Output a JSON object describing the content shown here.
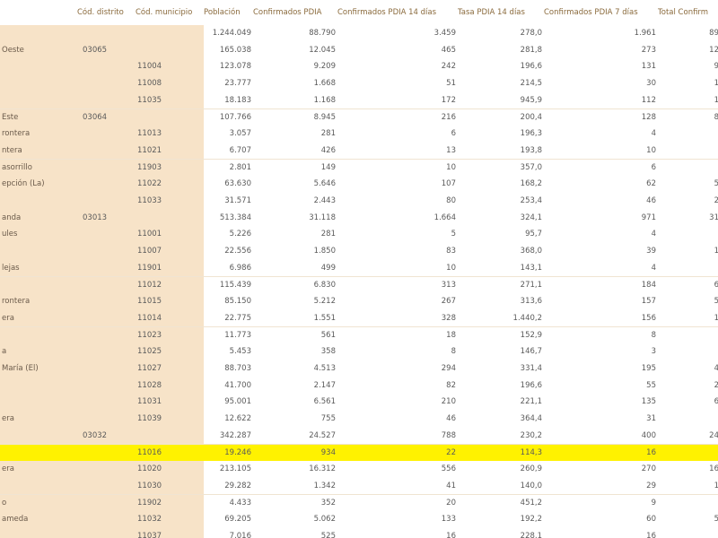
{
  "headers": [
    "",
    "Cód. distrito",
    "Cód. municipio",
    "Población",
    "Confirmados PDIA",
    "Confirmados PDIA 14 días",
    "Tasa PDIA 14 días",
    "Confirmados PDIA 7 días",
    "Total Confirm"
  ],
  "rows": [
    {
      "name": "",
      "distrito": "",
      "municipio": "",
      "poblacion": "1.244.049",
      "confirmados": "88.790",
      "c14": "3.459",
      "tasa14": "278,0",
      "c7": "1.961",
      "total": "89"
    },
    {
      "name": "Oeste",
      "distrito": "03065",
      "municipio": "",
      "poblacion": "165.038",
      "confirmados": "12.045",
      "c14": "465",
      "tasa14": "281,8",
      "c7": "273",
      "total": "12"
    },
    {
      "name": "",
      "distrito": "",
      "municipio": "11004",
      "poblacion": "123.078",
      "confirmados": "9.209",
      "c14": "242",
      "tasa14": "196,6",
      "c7": "131",
      "total": "9"
    },
    {
      "name": "",
      "distrito": "",
      "municipio": "11008",
      "poblacion": "23.777",
      "confirmados": "1.668",
      "c14": "51",
      "tasa14": "214,5",
      "c7": "30",
      "total": "1"
    },
    {
      "name": "",
      "distrito": "",
      "municipio": "11035",
      "poblacion": "18.183",
      "confirmados": "1.168",
      "c14": "172",
      "tasa14": "945,9",
      "c7": "112",
      "total": "1"
    },
    {
      "name": "Este",
      "distrito": "03064",
      "municipio": "",
      "poblacion": "107.766",
      "confirmados": "8.945",
      "c14": "216",
      "tasa14": "200,4",
      "c7": "128",
      "total": "8"
    },
    {
      "name": "rontera",
      "distrito": "",
      "municipio": "11013",
      "poblacion": "3.057",
      "confirmados": "281",
      "c14": "6",
      "tasa14": "196,3",
      "c7": "4",
      "total": ""
    },
    {
      "name": "ntera",
      "distrito": "",
      "municipio": "11021",
      "poblacion": "6.707",
      "confirmados": "426",
      "c14": "13",
      "tasa14": "193,8",
      "c7": "10",
      "total": ""
    },
    {
      "name": "asorrillo",
      "distrito": "",
      "municipio": "11903",
      "poblacion": "2.801",
      "confirmados": "149",
      "c14": "10",
      "tasa14": "357,0",
      "c7": "6",
      "total": ""
    },
    {
      "name": "epción (La)",
      "distrito": "",
      "municipio": "11022",
      "poblacion": "63.630",
      "confirmados": "5.646",
      "c14": "107",
      "tasa14": "168,2",
      "c7": "62",
      "total": "5"
    },
    {
      "name": "",
      "distrito": "",
      "municipio": "11033",
      "poblacion": "31.571",
      "confirmados": "2.443",
      "c14": "80",
      "tasa14": "253,4",
      "c7": "46",
      "total": "2"
    },
    {
      "name": "anda",
      "distrito": "03013",
      "municipio": "",
      "poblacion": "513.384",
      "confirmados": "31.118",
      "c14": "1.664",
      "tasa14": "324,1",
      "c7": "971",
      "total": "31"
    },
    {
      "name": "ules",
      "distrito": "",
      "municipio": "11001",
      "poblacion": "5.226",
      "confirmados": "281",
      "c14": "5",
      "tasa14": "95,7",
      "c7": "4",
      "total": ""
    },
    {
      "name": "",
      "distrito": "",
      "municipio": "11007",
      "poblacion": "22.556",
      "confirmados": "1.850",
      "c14": "83",
      "tasa14": "368,0",
      "c7": "39",
      "total": "1"
    },
    {
      "name": "lejas",
      "distrito": "",
      "municipio": "11901",
      "poblacion": "6.986",
      "confirmados": "499",
      "c14": "10",
      "tasa14": "143,1",
      "c7": "4",
      "total": ""
    },
    {
      "name": "",
      "distrito": "",
      "municipio": "11012",
      "poblacion": "115.439",
      "confirmados": "6.830",
      "c14": "313",
      "tasa14": "271,1",
      "c7": "184",
      "total": "6"
    },
    {
      "name": "rontera",
      "distrito": "",
      "municipio": "11015",
      "poblacion": "85.150",
      "confirmados": "5.212",
      "c14": "267",
      "tasa14": "313,6",
      "c7": "157",
      "total": "5"
    },
    {
      "name": "era",
      "distrito": "",
      "municipio": "11014",
      "poblacion": "22.775",
      "confirmados": "1.551",
      "c14": "328",
      "tasa14": "1.440,2",
      "c7": "156",
      "total": "1"
    },
    {
      "name": "",
      "distrito": "",
      "municipio": "11023",
      "poblacion": "11.773",
      "confirmados": "561",
      "c14": "18",
      "tasa14": "152,9",
      "c7": "8",
      "total": ""
    },
    {
      "name": "a",
      "distrito": "",
      "municipio": "11025",
      "poblacion": "5.453",
      "confirmados": "358",
      "c14": "8",
      "tasa14": "146,7",
      "c7": "3",
      "total": ""
    },
    {
      "name": "María (El)",
      "distrito": "",
      "municipio": "11027",
      "poblacion": "88.703",
      "confirmados": "4.513",
      "c14": "294",
      "tasa14": "331,4",
      "c7": "195",
      "total": "4"
    },
    {
      "name": "",
      "distrito": "",
      "municipio": "11028",
      "poblacion": "41.700",
      "confirmados": "2.147",
      "c14": "82",
      "tasa14": "196,6",
      "c7": "55",
      "total": "2"
    },
    {
      "name": "",
      "distrito": "",
      "municipio": "11031",
      "poblacion": "95.001",
      "confirmados": "6.561",
      "c14": "210",
      "tasa14": "221,1",
      "c7": "135",
      "total": "6"
    },
    {
      "name": "era",
      "distrito": "",
      "municipio": "11039",
      "poblacion": "12.622",
      "confirmados": "755",
      "c14": "46",
      "tasa14": "364,4",
      "c7": "31",
      "total": ""
    },
    {
      "name": "",
      "distrito": "03032",
      "municipio": "",
      "poblacion": "342.287",
      "confirmados": "24.527",
      "c14": "788",
      "tasa14": "230,2",
      "c7": "400",
      "total": "24"
    },
    {
      "name": "",
      "distrito": "",
      "municipio": "11016",
      "poblacion": "19.246",
      "confirmados": "934",
      "c14": "22",
      "tasa14": "114,3",
      "c7": "16",
      "total": "",
      "highlight": true
    },
    {
      "name": "era",
      "distrito": "",
      "municipio": "11020",
      "poblacion": "213.105",
      "confirmados": "16.312",
      "c14": "556",
      "tasa14": "260,9",
      "c7": "270",
      "total": "16"
    },
    {
      "name": "",
      "distrito": "",
      "municipio": "11030",
      "poblacion": "29.282",
      "confirmados": "1.342",
      "c14": "41",
      "tasa14": "140,0",
      "c7": "29",
      "total": "1"
    },
    {
      "name": "o",
      "distrito": "",
      "municipio": "11902",
      "poblacion": "4.433",
      "confirmados": "352",
      "c14": "20",
      "tasa14": "451,2",
      "c7": "9",
      "total": ""
    },
    {
      "name": "ameda",
      "distrito": "",
      "municipio": "11032",
      "poblacion": "69.205",
      "confirmados": "5.062",
      "c14": "133",
      "tasa14": "192,2",
      "c7": "60",
      "total": "5"
    },
    {
      "name": "",
      "distrito": "",
      "municipio": "11037",
      "poblacion": "7.016",
      "confirmados": "525",
      "c14": "16",
      "tasa14": "228,1",
      "c7": "16",
      "total": ""
    }
  ],
  "colors": {
    "header_text": "#8a6a3c",
    "tan_cell": "#f7e3c8",
    "highlight": "#fff200"
  }
}
